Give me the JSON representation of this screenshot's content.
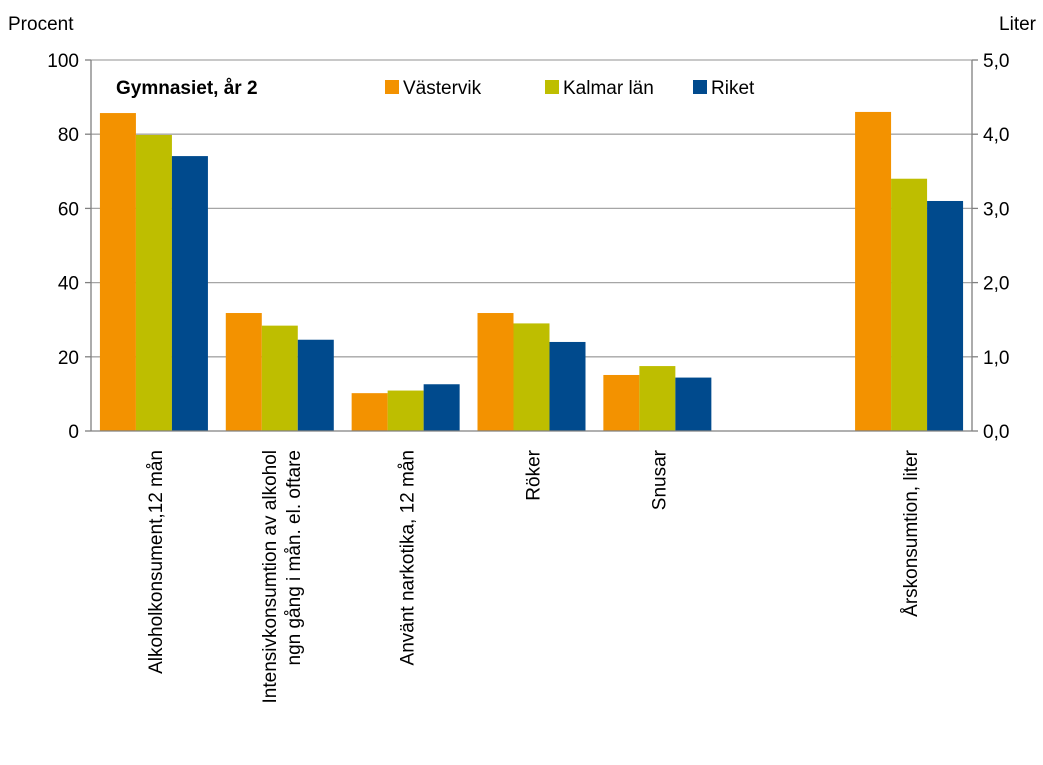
{
  "chart_data": {
    "type": "bar",
    "title": "Gymnasiet, år 2",
    "ylabel_left": "Procent",
    "ylabel_right": "Liter",
    "ylim_left": [
      0,
      100
    ],
    "ylim_right": [
      0,
      5
    ],
    "yticks_left": [
      "0",
      "20",
      "40",
      "60",
      "80",
      "100"
    ],
    "yticks_right": [
      "0,0",
      "1,0",
      "2,0",
      "3,0",
      "4,0",
      "5,0"
    ],
    "grid": true,
    "legend_position": "top",
    "categories": [
      [
        "Alkoholkonsument,12 mån"
      ],
      [
        "Intensivkonsumtion av alkohol",
        "ngn gång i mån. el. oftare"
      ],
      [
        "Använt narkotika, 12 mån"
      ],
      [
        "Röker"
      ],
      [
        "Snusar"
      ],
      [
        ""
      ],
      [
        "Årskonsumtion, liter"
      ]
    ],
    "axis_per_category": [
      "left",
      "left",
      "left",
      "left",
      "left",
      "left",
      "right"
    ],
    "series": [
      {
        "name": "Västervik",
        "color": "#F39200",
        "values": [
          85.7,
          31.8,
          10.2,
          31.8,
          15.1,
          null,
          4.3
        ]
      },
      {
        "name": "Kalmar län",
        "color": "#BEBE00",
        "values": [
          79.8,
          28.4,
          10.9,
          29.0,
          17.5,
          null,
          3.4
        ]
      },
      {
        "name": "Riket",
        "color": "#004A8D",
        "values": [
          74.1,
          24.6,
          12.6,
          24.0,
          14.4,
          null,
          3.1
        ]
      }
    ]
  }
}
